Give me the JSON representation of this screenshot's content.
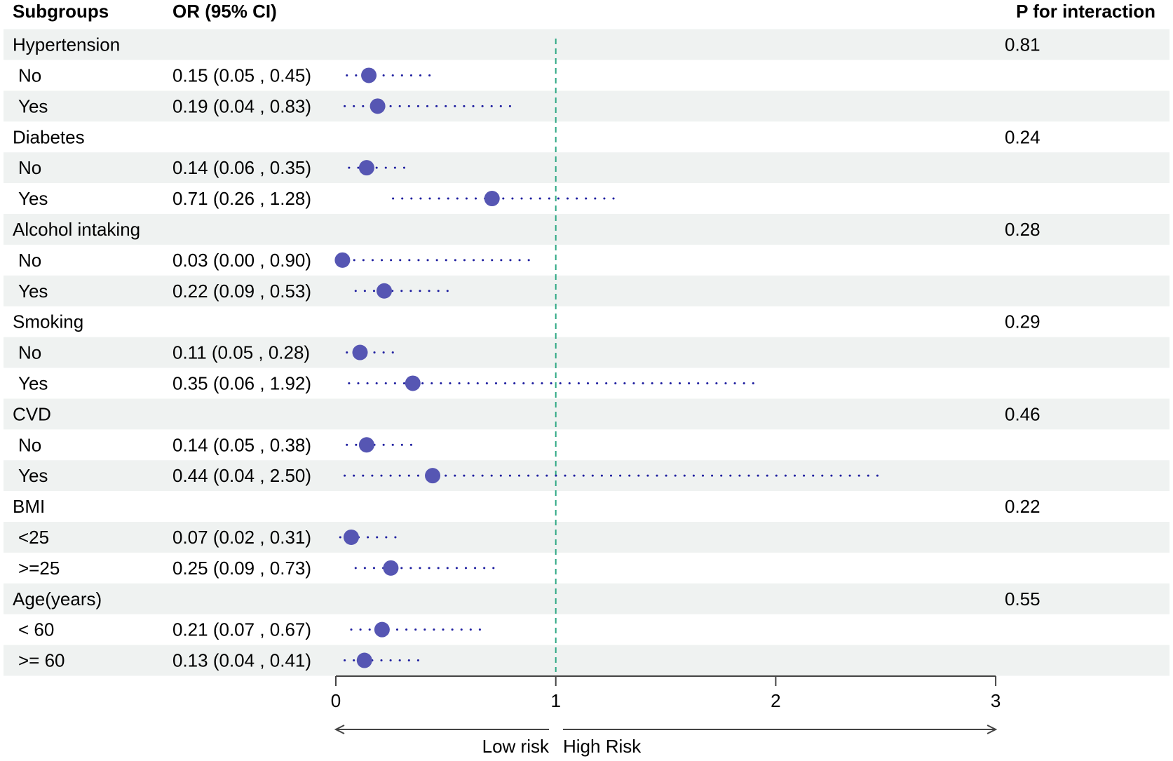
{
  "chart_data": {
    "type": "forest",
    "headers": {
      "subgroups": "Subgroups",
      "or": "OR (95% CI)",
      "p": "P for interaction"
    },
    "xlim": [
      0,
      3
    ],
    "xticks": [
      "0",
      "1",
      "2",
      "3"
    ],
    "reference_line": 1,
    "arrow_labels": {
      "left": "Low risk",
      "right": "High Risk"
    },
    "colors": {
      "point": "#5656b3",
      "ci": "#1f1fa0",
      "ref": "#2fa884",
      "band": "#eff2f1",
      "axis": "#444444"
    },
    "groups": [
      {
        "name": "Hypertension",
        "p": "0.81",
        "rows": [
          {
            "label": "No",
            "text": "0.15 (0.05 , 0.45)",
            "or": 0.15,
            "lo": 0.05,
            "hi": 0.45
          },
          {
            "label": "Yes",
            "text": "0.19 (0.04 , 0.83)",
            "or": 0.19,
            "lo": 0.04,
            "hi": 0.83
          }
        ]
      },
      {
        "name": "Diabetes",
        "p": "0.24",
        "rows": [
          {
            "label": "No",
            "text": "0.14 (0.06 , 0.35)",
            "or": 0.14,
            "lo": 0.06,
            "hi": 0.35
          },
          {
            "label": "Yes",
            "text": "0.71 (0.26 , 1.28)",
            "or": 0.71,
            "lo": 0.26,
            "hi": 1.28
          }
        ]
      },
      {
        "name": "Alcohol intaking",
        "p": "0.28",
        "rows": [
          {
            "label": "No",
            "text": "0.03 (0.00 , 0.90)",
            "or": 0.03,
            "lo": 0.0,
            "hi": 0.9
          },
          {
            "label": "Yes",
            "text": "0.22 (0.09 , 0.53)",
            "or": 0.22,
            "lo": 0.09,
            "hi": 0.53
          }
        ]
      },
      {
        "name": "Smoking",
        "p": "0.29",
        "rows": [
          {
            "label": "No",
            "text": "0.11 (0.05 , 0.28)",
            "or": 0.11,
            "lo": 0.05,
            "hi": 0.28
          },
          {
            "label": "Yes",
            "text": "0.35 (0.06 , 1.92)",
            "or": 0.35,
            "lo": 0.06,
            "hi": 1.92
          }
        ]
      },
      {
        "name": "CVD",
        "p": "0.46",
        "rows": [
          {
            "label": "No",
            "text": "0.14 (0.05 , 0.38)",
            "or": 0.14,
            "lo": 0.05,
            "hi": 0.38
          },
          {
            "label": "Yes",
            "text": "0.44 (0.04 , 2.50)",
            "or": 0.44,
            "lo": 0.04,
            "hi": 2.5
          }
        ]
      },
      {
        "name": "BMI",
        "p": "0.22",
        "rows": [
          {
            "label": "<25",
            "text": "0.07 (0.02 , 0.31)",
            "or": 0.07,
            "lo": 0.02,
            "hi": 0.31
          },
          {
            "label": ">=25",
            "text": "0.25 (0.09 , 0.73)",
            "or": 0.25,
            "lo": 0.09,
            "hi": 0.73
          }
        ]
      },
      {
        "name": "Age(years)",
        "p": "0.55",
        "rows": [
          {
            "label": "< 60",
            "text": "0.21 (0.07 , 0.67)",
            "or": 0.21,
            "lo": 0.07,
            "hi": 0.67
          },
          {
            "label": ">= 60",
            "text": "0.13 (0.04 , 0.41)",
            "or": 0.13,
            "lo": 0.04,
            "hi": 0.41
          }
        ]
      }
    ]
  }
}
